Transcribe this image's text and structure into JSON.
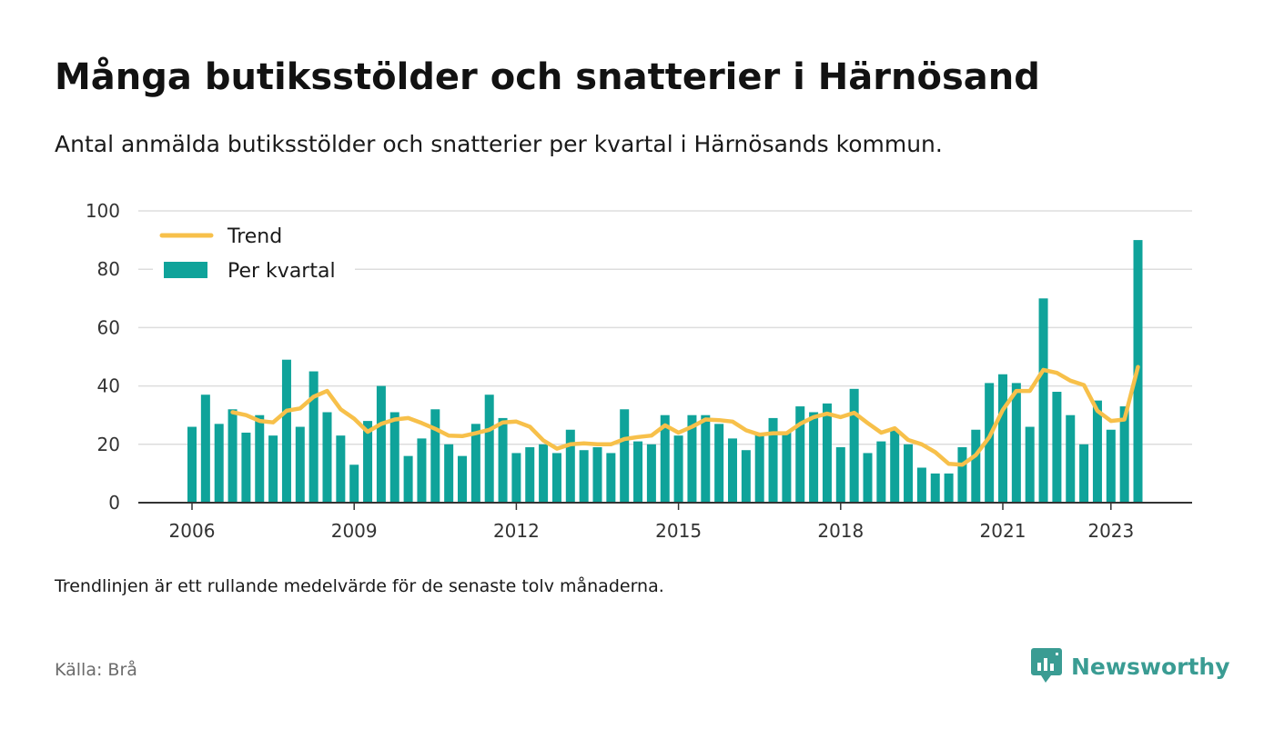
{
  "title": "Många butiksstölder och snatterier i Härnösand",
  "subtitle": "Antal anmälda butiksstölder och snatterier per kvartal i Härnösands kommun.",
  "footnote": "Trendlinjen är ett rullande medelvärde för de senaste tolv månaderna.",
  "source": "Källa: Brå",
  "brand": {
    "name": "Newsworthy",
    "icon": "newsworthy-logo-icon",
    "color": "#3a9c93"
  },
  "colors": {
    "bar": "#0fa39a",
    "trend": "#f7c04a",
    "grid": "#dddddd",
    "axis": "#333333"
  },
  "chart_data": {
    "type": "bar",
    "x_unit": "quarter",
    "start_quarter": "2006 Q1",
    "ylim": [
      0,
      100
    ],
    "yticks": [
      0,
      20,
      40,
      60,
      80,
      100
    ],
    "xticks": [
      "2006",
      "2009",
      "2012",
      "2015",
      "2018",
      "2021",
      "2023"
    ],
    "legend": {
      "position": "top-left",
      "entries": [
        "Trend",
        "Per kvartal"
      ]
    },
    "grid": true,
    "series": [
      {
        "name": "Per kvartal",
        "type": "bar",
        "values": [
          26,
          37,
          27,
          32,
          24,
          30,
          23,
          49,
          26,
          45,
          31,
          23,
          13,
          28,
          40,
          31,
          16,
          22,
          32,
          20,
          16,
          27,
          37,
          29,
          17,
          19,
          20,
          17,
          25,
          18,
          19,
          17,
          32,
          21,
          20,
          30,
          23,
          30,
          30,
          27,
          22,
          18,
          24,
          29,
          24,
          33,
          31,
          34,
          19,
          39,
          17,
          21,
          25,
          20,
          12,
          10,
          10,
          19,
          25,
          41,
          44,
          41,
          26,
          70,
          38,
          30,
          20,
          35,
          25,
          33,
          90
        ]
      },
      {
        "name": "Trend",
        "type": "line",
        "values": [
          null,
          null,
          null,
          31,
          30,
          28,
          27.5,
          31.5,
          32.3,
          36.3,
          38.3,
          32,
          28.8,
          24.3,
          27,
          28.5,
          29,
          27.3,
          25.3,
          23,
          22.8,
          23.8,
          25,
          27.5,
          27.8,
          26,
          21.3,
          18.5,
          20,
          20.3,
          20,
          20,
          21.8,
          22.5,
          23,
          26.5,
          24,
          26,
          28.5,
          28.3,
          27.8,
          24.8,
          23.3,
          23.8,
          23.8,
          27,
          29.3,
          30.5,
          29.3,
          30.8,
          27.3,
          24,
          25.5,
          21.5,
          20,
          17.3,
          13.3,
          13,
          16.3,
          22.5,
          31.8,
          38.3,
          38.3,
          45.5,
          44.5,
          41.8,
          40.3,
          31.5,
          28,
          28.5,
          46.5
        ]
      }
    ]
  }
}
